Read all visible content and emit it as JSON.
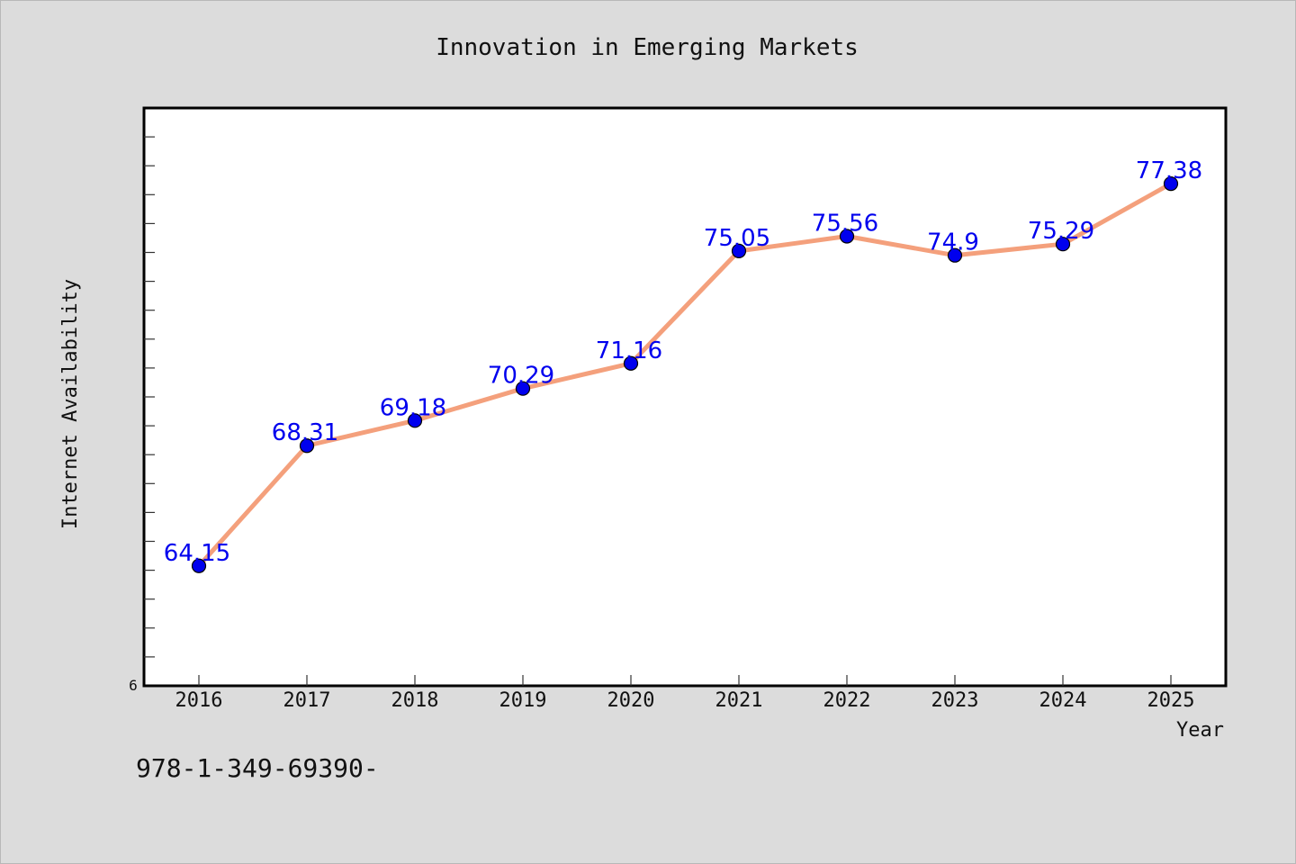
{
  "chart_data": {
    "type": "line",
    "title": "Innovation in Emerging Markets",
    "xlabel": "Year",
    "ylabel": "Internet Availability",
    "categories": [
      "2016",
      "2017",
      "2018",
      "2019",
      "2020",
      "2021",
      "2022",
      "2023",
      "2024",
      "2025"
    ],
    "series": [
      {
        "values": [
          64.15,
          68.31,
          69.18,
          70.29,
          71.16,
          75.05,
          75.56,
          74.9,
          75.29,
          77.38
        ]
      }
    ],
    "data_labels": [
      "64.15",
      "68.31",
      "69.18",
      "70.29",
      "71.16",
      "75.05",
      "75.56",
      "74.9",
      "75.29",
      "77.38"
    ],
    "ylim": [
      60,
      80
    ],
    "y_min_label": "6",
    "grid": false,
    "line_color": "#f4a07c",
    "marker_color": "#0000ee",
    "label_color": "#0000ee"
  },
  "footer": {
    "text": "978-1-349-69390-"
  }
}
